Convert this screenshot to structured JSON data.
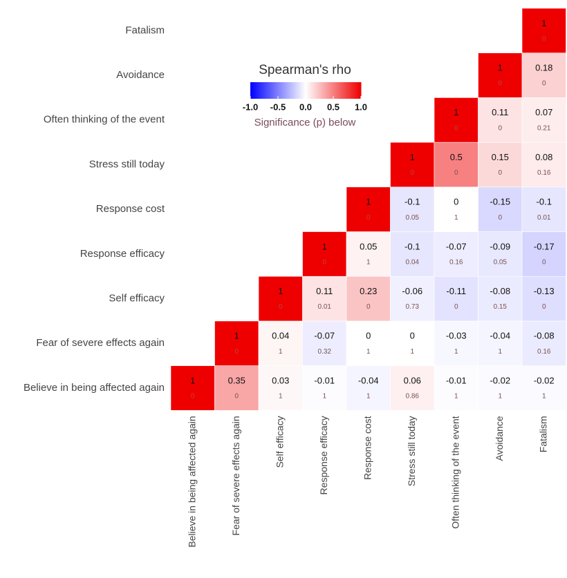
{
  "chart_data": {
    "type": "heatmap",
    "categories": [
      "Believe in being affected again",
      "Fear of severe effects again",
      "Self efficacy",
      "Response efficacy",
      "Response cost",
      "Stress still today",
      "Often thinking of the event",
      "Avoidance",
      "Fatalism"
    ],
    "values": [
      [
        1,
        0.35,
        0.03,
        -0.01,
        -0.04,
        0.06,
        -0.01,
        -0.02,
        -0.02
      ],
      [
        null,
        1,
        0.04,
        -0.07,
        0,
        0,
        -0.03,
        -0.04,
        -0.08
      ],
      [
        null,
        null,
        1,
        0.11,
        0.23,
        -0.06,
        -0.11,
        -0.08,
        -0.13
      ],
      [
        null,
        null,
        null,
        1,
        0.05,
        -0.1,
        -0.07,
        -0.09,
        -0.17
      ],
      [
        null,
        null,
        null,
        null,
        1,
        -0.1,
        0,
        -0.15,
        -0.1
      ],
      [
        null,
        null,
        null,
        null,
        null,
        1,
        0.5,
        0.15,
        0.08
      ],
      [
        null,
        null,
        null,
        null,
        null,
        null,
        1,
        0.11,
        0.07
      ],
      [
        null,
        null,
        null,
        null,
        null,
        null,
        null,
        1,
        0.18
      ],
      [
        null,
        null,
        null,
        null,
        null,
        null,
        null,
        null,
        1
      ]
    ],
    "p_values": [
      [
        0,
        0,
        1,
        1,
        1,
        0.86,
        1,
        1,
        1
      ],
      [
        null,
        0,
        1,
        0.32,
        1,
        1,
        1,
        1,
        0.16
      ],
      [
        null,
        null,
        0,
        0.01,
        0,
        0.73,
        0,
        0.15,
        0
      ],
      [
        null,
        null,
        null,
        0,
        1,
        0.04,
        0.16,
        0.05,
        0
      ],
      [
        null,
        null,
        null,
        null,
        0,
        0.05,
        1,
        0,
        0.01
      ],
      [
        null,
        null,
        null,
        null,
        null,
        0,
        0,
        0,
        0.16
      ],
      [
        null,
        null,
        null,
        null,
        null,
        null,
        0,
        0,
        0.21
      ],
      [
        null,
        null,
        null,
        null,
        null,
        null,
        null,
        0,
        0
      ],
      [
        null,
        null,
        null,
        null,
        null,
        null,
        null,
        null,
        0
      ]
    ],
    "legend_title": "Spearman's rho",
    "legend_subtitle": "Significance (p) below",
    "colorbar_lim": [
      -1,
      1
    ],
    "colorbar_ticks": [
      {
        "value": -1,
        "label": "-1.0"
      },
      -0.5,
      {
        "value": 0,
        "label": "0.0"
      },
      0.5,
      {
        "value": 1,
        "label": "1.0"
      }
    ],
    "colors": {
      "low": "#0000ff",
      "mid": "#ffffff",
      "high": "#ee0000"
    }
  }
}
